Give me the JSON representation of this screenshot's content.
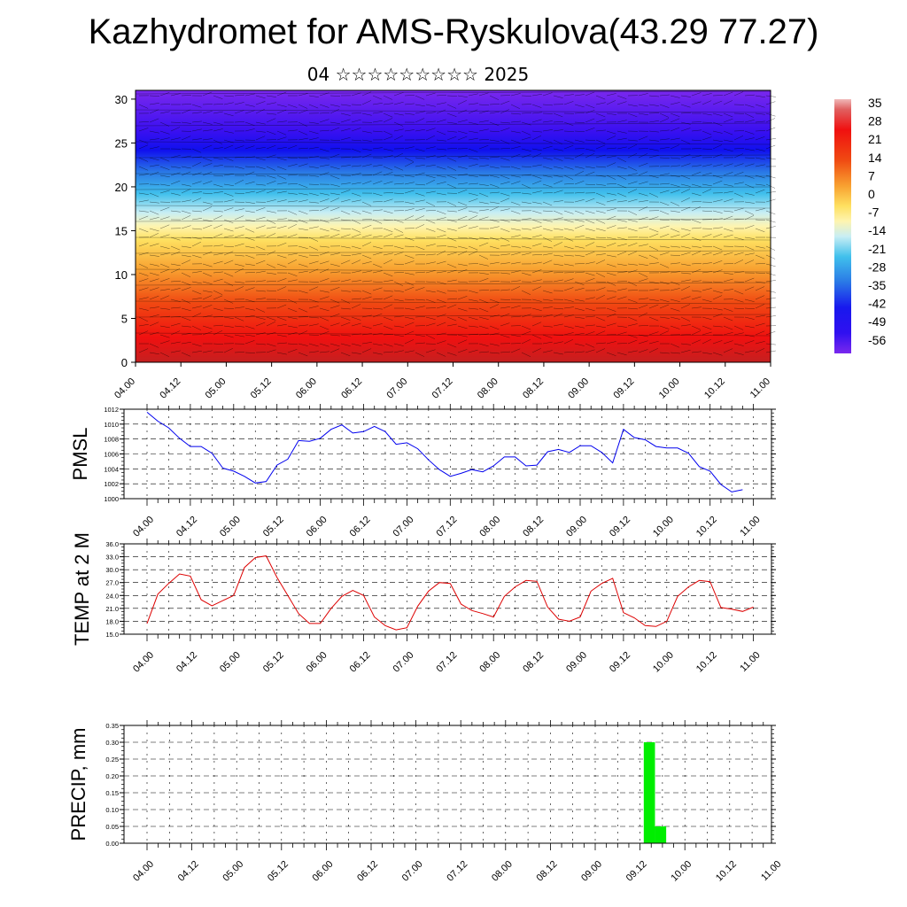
{
  "title": "Kazhydromet for AMS-Ryskulova(43.29 77.27)",
  "subtitle": "04 ☆☆☆☆☆☆☆☆☆ 2025",
  "chart_data": [
    {
      "type": "heatmap",
      "name": "vertical-cross-section",
      "xlabel": "",
      "ylabel": "",
      "x_ticks": [
        "04.00",
        "04.12",
        "05.00",
        "05.12",
        "06.00",
        "06.12",
        "07.00",
        "07.12",
        "08.00",
        "08.12",
        "09.00",
        "09.12",
        "10.00",
        "10.12",
        "11.00"
      ],
      "ylim": [
        0,
        31
      ],
      "y_ticks": [
        0,
        5,
        10,
        15,
        20,
        25,
        30
      ],
      "colorbar": {
        "labels": [
          "35",
          "28",
          "21",
          "14",
          "7",
          "0",
          "-7",
          "-14",
          "-21",
          "-28",
          "-35",
          "-42",
          "-49",
          "-56"
        ],
        "range": [
          -60,
          38
        ]
      },
      "level_temperature": [
        [
          0,
          29
        ],
        [
          3,
          25
        ],
        [
          6,
          18
        ],
        [
          9,
          12
        ],
        [
          12,
          6
        ],
        [
          15,
          -3
        ],
        [
          17,
          -12
        ],
        [
          19,
          -22
        ],
        [
          21,
          -32
        ],
        [
          23,
          -44
        ],
        [
          25,
          -55
        ],
        [
          27,
          -58
        ],
        [
          31,
          -60
        ]
      ]
    },
    {
      "type": "line",
      "ylabel": "PMSL",
      "ylim": [
        1000,
        1012
      ],
      "y_ticks": [
        "1000",
        "1002",
        "1004",
        "1006",
        "1008",
        "1010",
        "1012"
      ],
      "x_ticks": [
        "04.00",
        "04.12",
        "05.00",
        "05.12",
        "06.00",
        "06.12",
        "07.00",
        "07.12",
        "08.00",
        "08.12",
        "09.00",
        "09.12",
        "10.00",
        "10.12",
        "11.00"
      ],
      "color": "#0000ee",
      "values": [
        1011.6,
        1010.4,
        1009.5,
        1008.1,
        1007.0,
        1007.0,
        1006.1,
        1004.1,
        1003.7,
        1003.0,
        1002.1,
        1002.3,
        1004.5,
        1005.3,
        1007.8,
        1007.7,
        1008.1,
        1009.3,
        1009.9,
        1008.8,
        1009.0,
        1009.7,
        1009.0,
        1007.3,
        1007.5,
        1006.7,
        1005.2,
        1003.9,
        1003.0,
        1003.4,
        1003.9,
        1003.6,
        1004.4,
        1005.6,
        1005.6,
        1004.4,
        1004.5,
        1006.3,
        1006.6,
        1006.2,
        1007.1,
        1007.1,
        1006.2,
        1004.8,
        1009.3,
        1008.2,
        1007.9,
        1007.0,
        1006.8,
        1006.8,
        1006.1,
        1004.3,
        1003.7,
        1001.9,
        1000.9,
        1001.2
      ]
    },
    {
      "type": "line",
      "ylabel": "TEMP at 2 M",
      "ylim": [
        15,
        36
      ],
      "y_ticks": [
        "15.0",
        "18.0",
        "21.0",
        "24.0",
        "27.0",
        "30.0",
        "33.0",
        "36.0"
      ],
      "x_ticks": [
        "04.00",
        "04.12",
        "05.00",
        "05.12",
        "06.00",
        "06.12",
        "07.00",
        "07.12",
        "08.00",
        "08.12",
        "09.00",
        "09.12",
        "10.00",
        "10.12",
        "11.00"
      ],
      "color": "#dd0000",
      "values": [
        17.5,
        24.3,
        26.8,
        29.0,
        28.5,
        23.0,
        21.6,
        22.8,
        24.0,
        30.5,
        32.8,
        33.2,
        28.2,
        24.0,
        19.8,
        17.5,
        17.5,
        21.0,
        23.8,
        25.2,
        24.0,
        19.0,
        17.0,
        16.0,
        16.5,
        21.5,
        25.0,
        27.0,
        26.8,
        22.0,
        20.5,
        19.8,
        19.0,
        23.8,
        26.0,
        27.5,
        27.3,
        21.3,
        18.5,
        18.0,
        19.0,
        25.0,
        26.8,
        28.0,
        20.0,
        18.8,
        17.0,
        16.8,
        18.0,
        23.8,
        26.0,
        27.5,
        27.2,
        21.2,
        20.8,
        20.3,
        21.3
      ]
    },
    {
      "type": "bar",
      "ylabel": "PRECIP, mm",
      "ylim": [
        0,
        0.35
      ],
      "y_ticks": [
        "0.00",
        "0.05",
        "0.10",
        "0.15",
        "0.20",
        "0.25",
        "0.30",
        "0.35"
      ],
      "x_ticks": [
        "04.00",
        "04.12",
        "05.00",
        "05.12",
        "06.00",
        "06.12",
        "07.00",
        "07.12",
        "08.00",
        "08.12",
        "09.00",
        "09.12",
        "10.00",
        "10.12",
        "11.00"
      ],
      "color": "#00ee00",
      "bars": [
        {
          "t": 133,
          "value": 0.3
        },
        {
          "t": 136,
          "value": 0.05
        }
      ]
    }
  ]
}
